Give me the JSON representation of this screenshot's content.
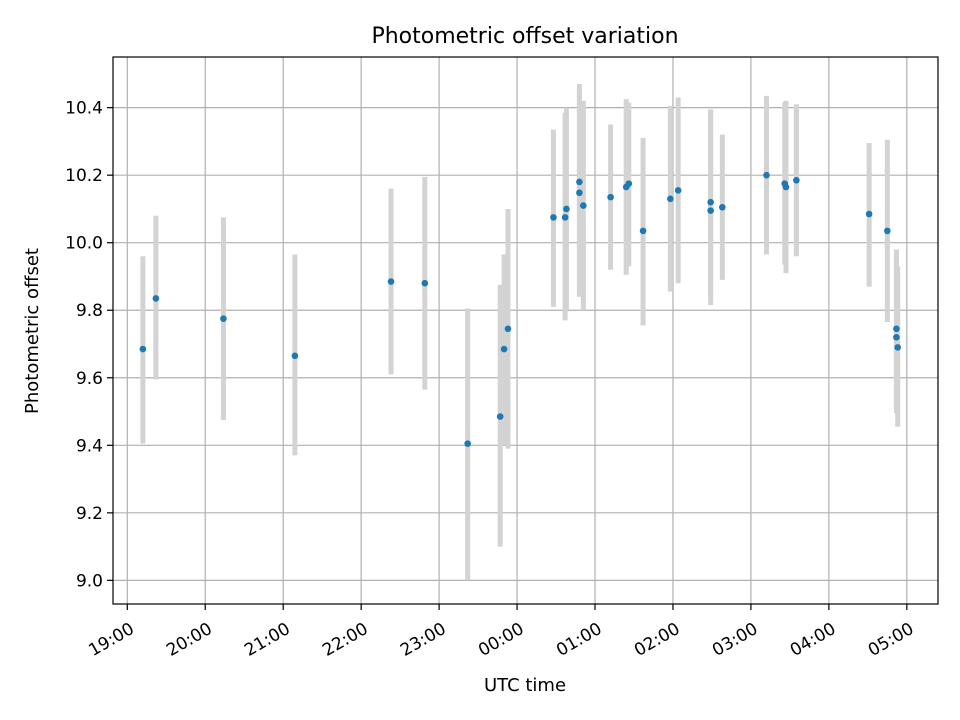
{
  "chart_data": {
    "type": "scatter",
    "title": "Photometric offset variation",
    "xlabel": "UTC time",
    "ylabel": "Photometric offset",
    "x_unit": "UTC time (hours, continuing past midnight)",
    "xlim": [
      "18:49",
      "05:24"
    ],
    "ylim": [
      8.93,
      10.55
    ],
    "grid": true,
    "marker_color": "#1f77b4",
    "errorbar_color": "#d3d3d3",
    "xticks": [
      "19:00",
      "20:00",
      "21:00",
      "22:00",
      "23:00",
      "00:00",
      "01:00",
      "02:00",
      "03:00",
      "04:00",
      "05:00"
    ],
    "yticks": [
      "9.0",
      "9.2",
      "9.4",
      "9.6",
      "9.8",
      "10.0",
      "10.2",
      "10.4"
    ],
    "series": [
      {
        "points": [
          {
            "x": "19:12",
            "y": 9.685,
            "lo": 9.405,
            "hi": 9.96
          },
          {
            "x": "19:22",
            "y": 9.835,
            "lo": 9.595,
            "hi": 10.08
          },
          {
            "x": "20:14",
            "y": 9.775,
            "lo": 9.475,
            "hi": 10.075
          },
          {
            "x": "21:09",
            "y": 9.665,
            "lo": 9.37,
            "hi": 9.965
          },
          {
            "x": "22:23",
            "y": 9.885,
            "lo": 9.61,
            "hi": 10.16
          },
          {
            "x": "22:49",
            "y": 9.88,
            "lo": 9.565,
            "hi": 10.195
          },
          {
            "x": "23:22",
            "y": 9.405,
            "lo": 9.0,
            "hi": 9.805
          },
          {
            "x": "23:47",
            "y": 9.485,
            "lo": 9.1,
            "hi": 9.875
          },
          {
            "x": "23:50",
            "y": 9.685,
            "lo": 9.4,
            "hi": 9.965
          },
          {
            "x": "23:53",
            "y": 9.745,
            "lo": 9.39,
            "hi": 10.1
          },
          {
            "x": "00:28",
            "y": 10.075,
            "lo": 9.81,
            "hi": 10.335
          },
          {
            "x": "00:37",
            "y": 10.075,
            "lo": 9.77,
            "hi": 10.385
          },
          {
            "x": "00:38",
            "y": 10.1,
            "lo": 9.8,
            "hi": 10.4
          },
          {
            "x": "00:48",
            "y": 10.18,
            "lo": 9.84,
            "hi": 10.47
          },
          {
            "x": "00:48",
            "y": 10.148,
            "lo": 9.85,
            "hi": 10.44
          },
          {
            "x": "00:51",
            "y": 10.11,
            "lo": 9.8,
            "hi": 10.42
          },
          {
            "x": "01:12",
            "y": 10.135,
            "lo": 9.92,
            "hi": 10.35
          },
          {
            "x": "01:24",
            "y": 10.165,
            "lo": 9.905,
            "hi": 10.425
          },
          {
            "x": "01:26",
            "y": 10.175,
            "lo": 9.93,
            "hi": 10.415
          },
          {
            "x": "01:37",
            "y": 10.035,
            "lo": 9.755,
            "hi": 10.31
          },
          {
            "x": "01:58",
            "y": 10.13,
            "lo": 9.855,
            "hi": 10.405
          },
          {
            "x": "02:04",
            "y": 10.155,
            "lo": 9.88,
            "hi": 10.43
          },
          {
            "x": "02:29",
            "y": 10.095,
            "lo": 9.815,
            "hi": 10.395
          },
          {
            "x": "02:29",
            "y": 10.12,
            "lo": 9.84,
            "hi": 10.39
          },
          {
            "x": "02:38",
            "y": 10.105,
            "lo": 9.89,
            "hi": 10.32
          },
          {
            "x": "03:12",
            "y": 10.2,
            "lo": 9.965,
            "hi": 10.435
          },
          {
            "x": "03:26",
            "y": 10.175,
            "lo": 9.935,
            "hi": 10.415
          },
          {
            "x": "03:27",
            "y": 10.165,
            "lo": 9.91,
            "hi": 10.42
          },
          {
            "x": "03:35",
            "y": 10.185,
            "lo": 9.96,
            "hi": 10.41
          },
          {
            "x": "04:31",
            "y": 10.085,
            "lo": 9.87,
            "hi": 10.295
          },
          {
            "x": "04:45",
            "y": 10.035,
            "lo": 9.765,
            "hi": 10.305
          },
          {
            "x": "04:52",
            "y": 9.745,
            "lo": 9.51,
            "hi": 9.98
          },
          {
            "x": "04:52",
            "y": 9.72,
            "lo": 9.495,
            "hi": 9.945
          },
          {
            "x": "04:53",
            "y": 9.69,
            "lo": 9.455,
            "hi": 9.93
          }
        ]
      }
    ]
  }
}
